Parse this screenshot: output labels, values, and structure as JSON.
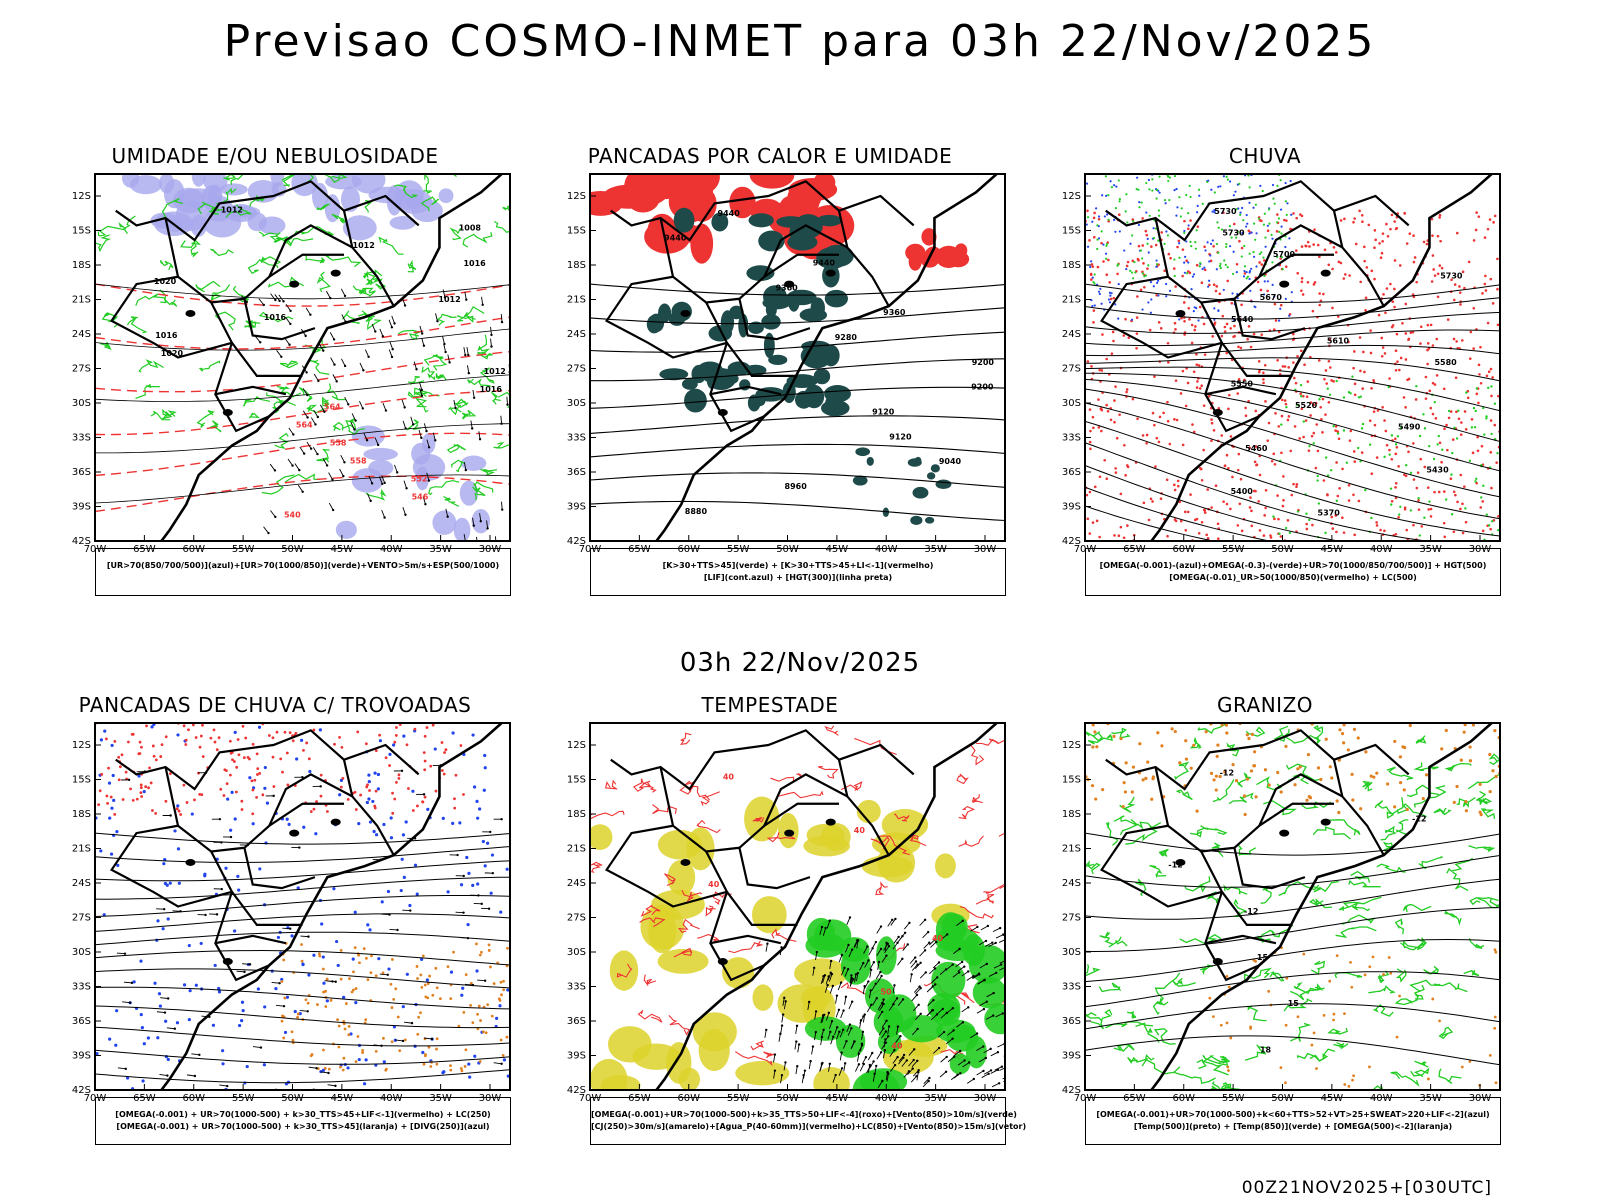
{
  "header": {
    "title": "Previsao COSMO-INMET  para 03h 22/Nov/2025"
  },
  "middle_date": "03h 22/Nov/2025",
  "footer_code": "00Z21NOV2025+[030UTC]",
  "axes": {
    "lat_labels": [
      "12S",
      "15S",
      "18S",
      "21S",
      "24S",
      "27S",
      "30S",
      "33S",
      "36S",
      "39S",
      "42S"
    ],
    "lon_labels": [
      "70W",
      "65W",
      "60W",
      "55W",
      "50W",
      "45W",
      "40W",
      "35W",
      "30W"
    ]
  },
  "colors": {
    "green": "#22cc22",
    "red": "#ee3333",
    "blue": "#2244ee",
    "lavender": "#a8a8ee",
    "dark_teal": "#1f4a4a",
    "yellow": "#ddd22a",
    "orange": "#e08020",
    "black": "#000000"
  },
  "panels": [
    {
      "title": "UMIDADE E/OU NEBULOSIDADE",
      "legend": [
        "[UR>70(850/700/500)](azul)+[UR>70(1000/850)](verde)+VENTO>5m/s+ESP(500/1000)"
      ],
      "labels": [
        "1012",
        "1008",
        "1012",
        "1016",
        "1020",
        "1012",
        "1016",
        "1016",
        "1020",
        "1012",
        "1016",
        "564",
        "564",
        "558",
        "558",
        "552",
        "546",
        "540"
      ]
    },
    {
      "title": "PANCADAS POR CALOR E UMIDADE",
      "legend": [
        "[K>30+TTS>45](verde) + [K>30+TTS>45+LI<-1](vermelho)",
        "[LIF](cont.azul) + [HGT(300)](linha preta)"
      ],
      "labels": [
        "9440",
        "9440",
        "9440",
        "9360",
        "9360",
        "9280",
        "9200",
        "9200",
        "9120",
        "9120",
        "9040",
        "8960",
        "8880"
      ]
    },
    {
      "title": "CHUVA",
      "legend": [
        "[OMEGA(-0.001)-(azul)+OMEGA(-0.3)-(verde)+UR>70(1000/850/700/500)] + HGT(500)",
        "[OMEGA(-0.01)_UR>50(1000/850)(vermelho) + LC(500)"
      ],
      "labels": [
        "5730",
        "5730",
        "5700",
        "5730",
        "5670",
        "5640",
        "5610",
        "5580",
        "5550",
        "5520",
        "5490",
        "5460",
        "5430",
        "5400",
        "5370"
      ]
    },
    {
      "title": "PANCADAS DE CHUVA C/ TROVOADAS",
      "legend": [
        "[OMEGA(-0.001) + UR>70(1000-500) + k>30_TTS>45+LIF<-1](vermelho) + LC(250)",
        "[OMEGA(-0.001) + UR>70(1000-500) + k>30_TTS>45](laranja) + [DIVG(250)](azul)"
      ],
      "labels": []
    },
    {
      "title": "TEMPESTADE",
      "legend": [
        "[OMEGA(-0.001)+UR>70(1000-500)+k>35_TTS>50+LIF<-4](roxo)+[Vento(850)>10m/s](verde)",
        "[CJ(250)>30m/s](amarelo)+[Agua_P(40-60mm)](vermelho)+LC(850)+[Vento(850)>15m/s](vetor)"
      ],
      "labels": [
        "40",
        "40",
        "40",
        "40",
        "50",
        "40"
      ]
    },
    {
      "title": "GRANIZO",
      "legend": [
        "[OMEGA(-0.001)+UR>70(1000-500)+k<60+TTS>52+VT>25+SWEAT>220+LIF<-2](azul)",
        "[Temp(500)](preto) + [Temp(850)](verde) + [OMEGA(500)<-2](laranja)"
      ],
      "labels": [
        "-12",
        "-12",
        "-12",
        "-12",
        "15",
        "15",
        "18"
      ]
    }
  ]
}
